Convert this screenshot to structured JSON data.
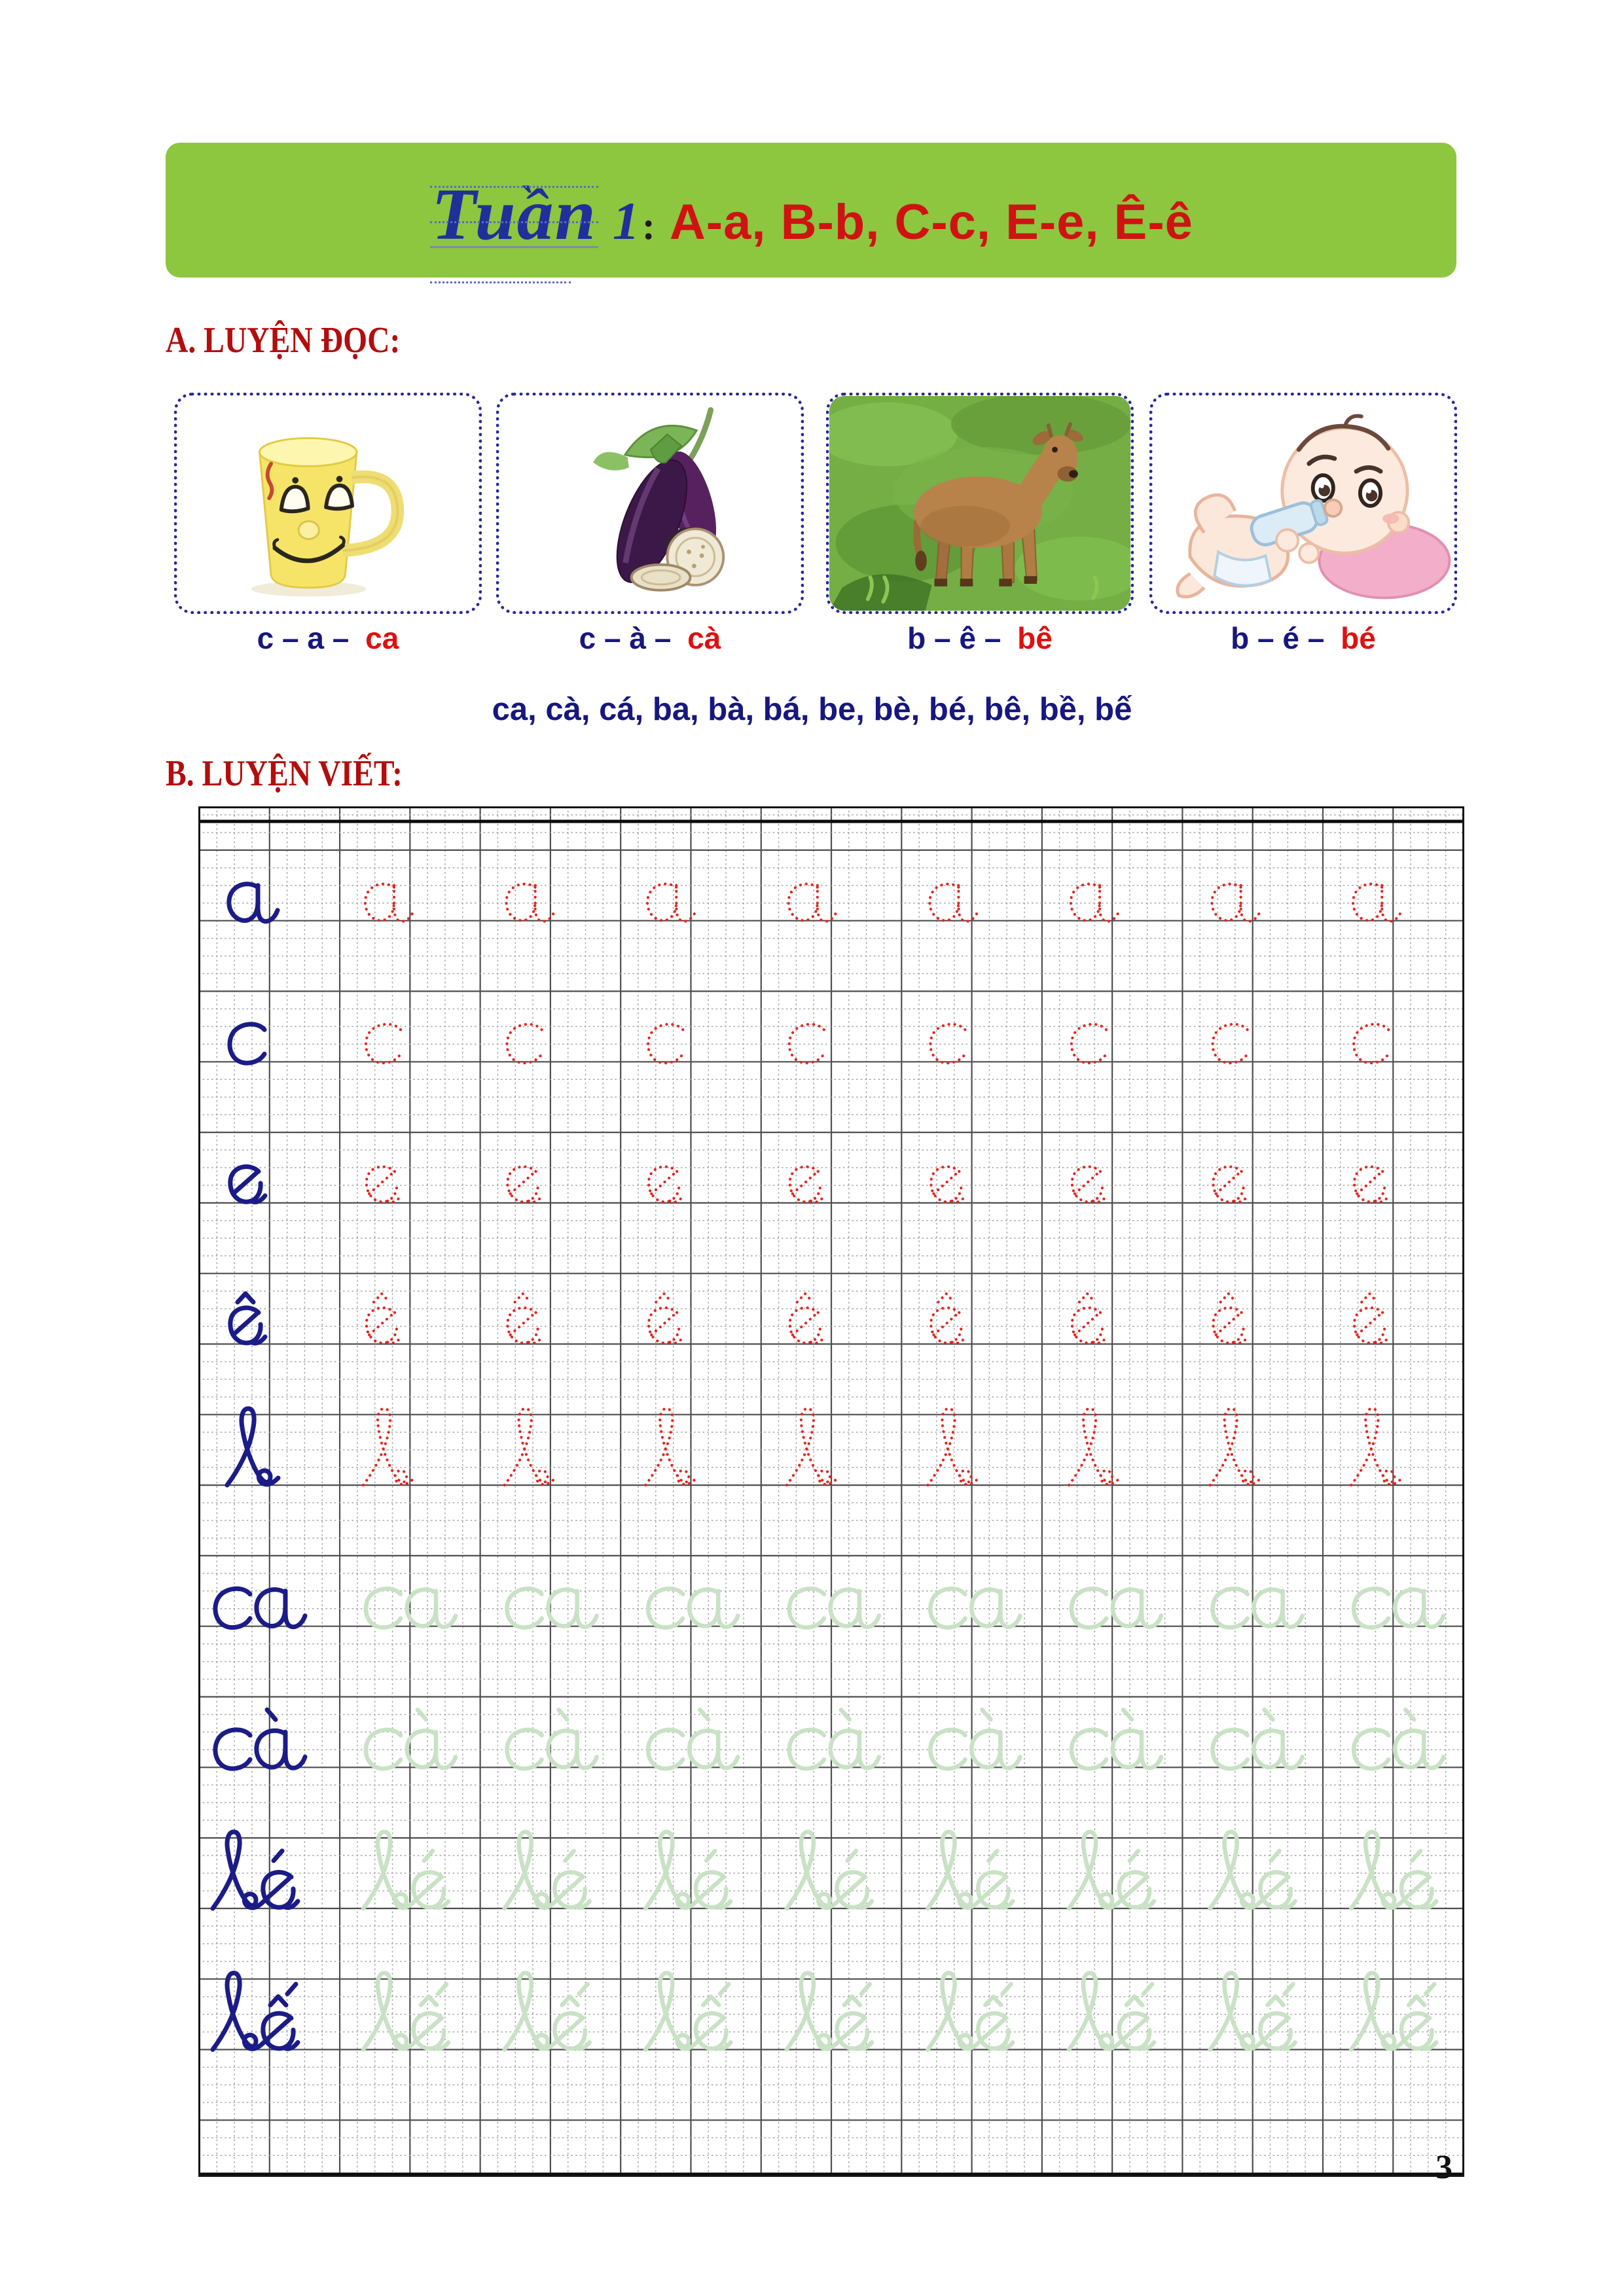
{
  "page": {
    "number": "3"
  },
  "banner": {
    "script_word": "Tuần",
    "week_number": "1",
    "separator": ":",
    "letters_list": "A-a, B-b, C-c, E-e, Ê-ê",
    "bg_color": "#8dc63f",
    "script_color": "#212f9b",
    "letters_color": "#cf1313"
  },
  "section_a": {
    "label": "A. LUYỆN ĐỌC:",
    "label_color": "#b30d0d",
    "caption_blue_color": "#17177f",
    "caption_red_color": "#e01010",
    "cards": [
      {
        "image": "yellow smiley cup",
        "sound_parts": "c – a –",
        "result": "ca"
      },
      {
        "image": "eggplants",
        "sound_parts": "c – à –",
        "result": "cà"
      },
      {
        "image": "calf in grass",
        "sound_parts": "b – ê –",
        "result": "bê"
      },
      {
        "image": "baby with bottle",
        "sound_parts": "b – é –",
        "result": "bé"
      }
    ],
    "syllable_line": "ca, cà, cá, ba, bà, bá, be, bè, bé, bê, bề, bế"
  },
  "section_b": {
    "label": "B. LUYỆN VIẾT:",
    "ink_color": "#1b1c87",
    "trace_red": "#e3251f",
    "trace_green": "#c9e2c5",
    "repeats_per_row": 8,
    "rows": [
      {
        "letter": "a",
        "trace": "red"
      },
      {
        "letter": "c",
        "trace": "red"
      },
      {
        "letter": "e",
        "trace": "red"
      },
      {
        "letter": "ê",
        "trace": "red"
      },
      {
        "letter": "b",
        "trace": "red"
      },
      {
        "letter": "ca",
        "trace": "green"
      },
      {
        "letter": "cà",
        "trace": "green"
      },
      {
        "letter": "bé",
        "trace": "green"
      },
      {
        "letter": "bế",
        "trace": "green"
      }
    ]
  }
}
